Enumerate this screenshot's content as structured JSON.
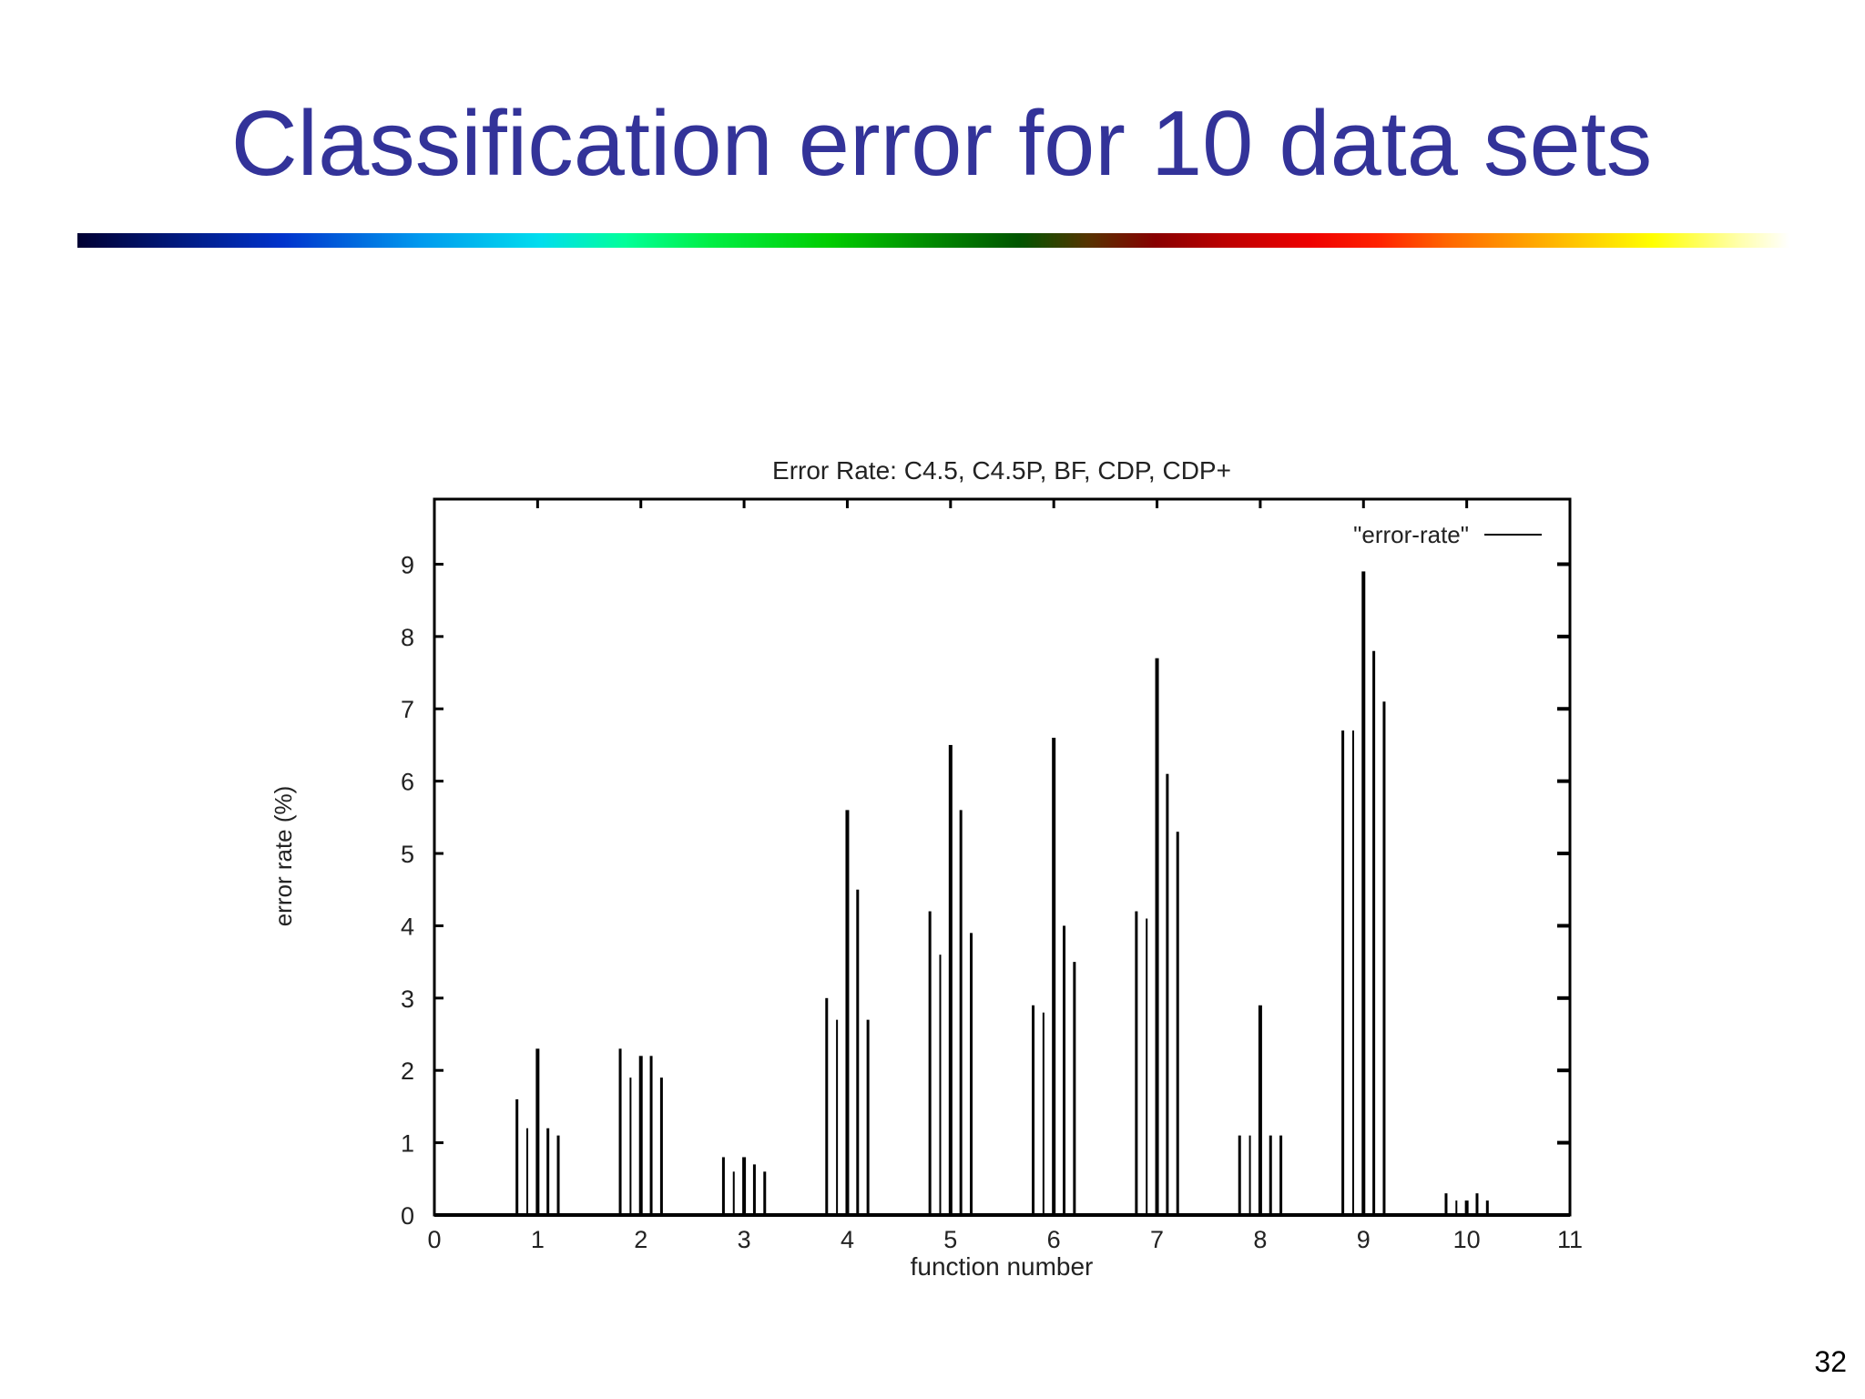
{
  "slide": {
    "title": "Classification error for 10 data sets",
    "page_number": "32"
  },
  "chart_data": {
    "type": "bar",
    "title": "Error Rate: C4.5, C4.5P, BF, CDP, CDP+",
    "xlabel": "function number",
    "ylabel": "error rate (%)",
    "legend": {
      "label": "\"error-rate\"",
      "position": "top-right"
    },
    "xlim": [
      0,
      11
    ],
    "ylim": [
      0,
      9.9
    ],
    "xticks": [
      "0",
      "1",
      "2",
      "3",
      "4",
      "5",
      "6",
      "7",
      "8",
      "9",
      "10",
      "11"
    ],
    "yticks": [
      "0",
      "1",
      "2",
      "3",
      "4",
      "5",
      "6",
      "7",
      "8",
      "9"
    ],
    "grid": false,
    "bar_offsets": [
      -0.2,
      -0.1,
      0.0,
      0.1,
      0.2
    ],
    "categories": [
      1,
      2,
      3,
      4,
      5,
      6,
      7,
      8,
      9,
      10
    ],
    "series": [
      {
        "values": [
          1.6,
          2.3,
          0.8,
          3.0,
          4.2,
          2.9,
          4.2,
          1.1,
          6.7,
          0.3
        ]
      },
      {
        "values": [
          1.2,
          1.9,
          0.6,
          2.7,
          3.6,
          2.8,
          4.1,
          1.1,
          6.7,
          0.2
        ]
      },
      {
        "values": [
          2.3,
          2.2,
          0.8,
          5.6,
          6.5,
          6.6,
          7.7,
          2.9,
          8.9,
          0.2
        ]
      },
      {
        "values": [
          1.2,
          2.2,
          0.7,
          4.5,
          5.6,
          4.0,
          6.1,
          1.1,
          7.8,
          0.3
        ]
      },
      {
        "values": [
          1.1,
          1.9,
          0.6,
          2.7,
          3.9,
          3.5,
          5.3,
          1.1,
          7.1,
          0.2
        ]
      }
    ]
  }
}
